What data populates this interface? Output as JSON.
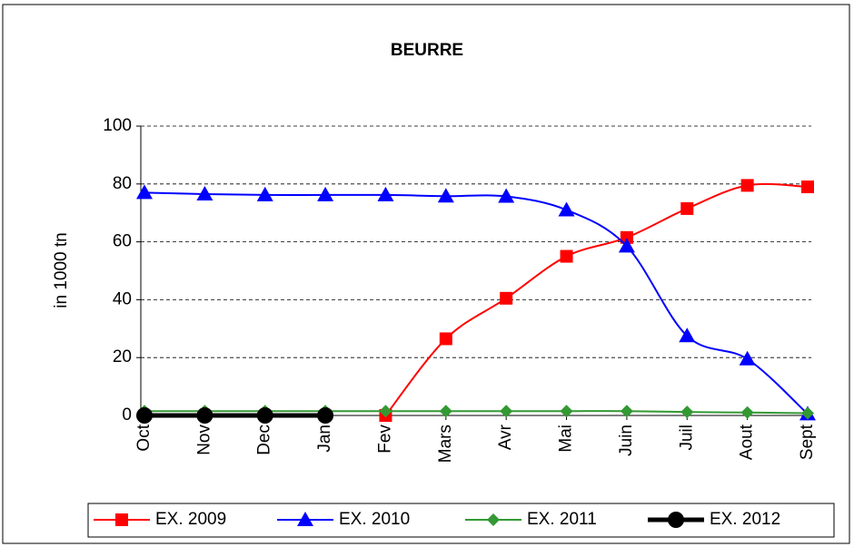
{
  "chart_data": {
    "type": "line",
    "title": "BEURRE",
    "y_label": "in 1000 tn",
    "categories": [
      "Oct",
      "Nov",
      "Dec",
      "Jan",
      "Fev",
      "Mars",
      "Avr",
      "Mai",
      "Juin",
      "Juil",
      "Aout",
      "Sept"
    ],
    "ylim": [
      0,
      100
    ],
    "yticks": [
      0,
      20,
      40,
      60,
      80,
      100
    ],
    "grid": true,
    "smooth": true,
    "legend": "bottom",
    "series": [
      {
        "name": "EX. 2009",
        "color": "#ff0000",
        "marker": "square",
        "values": [
          null,
          null,
          null,
          null,
          0,
          26.5,
          40.5,
          55,
          61.5,
          71.5,
          79.5,
          79
        ]
      },
      {
        "name": "EX. 2010",
        "color": "#0000ff",
        "marker": "triangle",
        "values": [
          77,
          76.5,
          76.2,
          76.2,
          76.2,
          75.8,
          75.7,
          71,
          58.5,
          27.5,
          19.5,
          0.5
        ]
      },
      {
        "name": "EX. 2011",
        "color": "#339933",
        "marker": "diamond",
        "values": [
          1.5,
          1.5,
          1.5,
          1.5,
          1.5,
          1.5,
          1.5,
          1.5,
          1.5,
          1.2,
          1,
          0.8
        ]
      },
      {
        "name": "EX. 2012",
        "color": "#000000",
        "marker": "circle",
        "values": [
          0,
          0,
          0,
          0,
          null,
          null,
          null,
          null,
          null,
          null,
          null,
          null
        ]
      }
    ]
  }
}
